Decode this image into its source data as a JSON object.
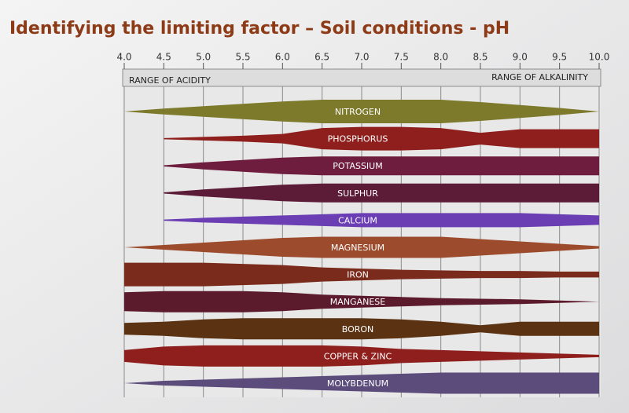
{
  "chart_data": {
    "type": "band",
    "title": "Identifying the limiting factor – Soil conditions - pH",
    "left_label": "RANGE OF ACIDITY",
    "right_label": "RANGE OF ALKALINITY",
    "x": [
      4,
      4.5,
      5,
      5.5,
      6,
      6.5,
      7,
      7.5,
      8,
      8.5,
      9,
      9.5,
      10
    ],
    "xlim": [
      4,
      10
    ],
    "xticks": [
      {
        "value": 4,
        "label": "4.0"
      },
      4.5,
      {
        "value": 5,
        "label": "5.0"
      },
      5.5,
      {
        "value": 6,
        "label": "6.0"
      },
      6.5,
      {
        "value": 7,
        "label": "7.0"
      },
      7.5,
      {
        "value": 8,
        "label": "8.0"
      },
      8.5,
      {
        "value": 9,
        "label": "9.0"
      },
      9.5,
      {
        "value": 10,
        "label": "10.0"
      }
    ],
    "grid": true,
    "series": [
      {
        "name": "NITROGEN",
        "color": "#7d7a2c",
        "values": [
          0,
          0.25,
          0.45,
          0.65,
          0.85,
          1,
          1,
          1,
          1,
          0.8,
          0.55,
          0.3,
          0
        ]
      },
      {
        "name": "PHOSPHORUS",
        "color": "#8e1f1c",
        "values": [
          null,
          0.05,
          0.15,
          0.25,
          0.4,
          0.9,
          1,
          1,
          0.9,
          0.5,
          0.8,
          0.8,
          0.8
        ]
      },
      {
        "name": "POTASSIUM",
        "color": "#6e1d3e",
        "values": [
          null,
          0.05,
          0.3,
          0.5,
          0.7,
          0.8,
          0.8,
          0.8,
          0.8,
          0.8,
          0.8,
          0.8,
          0.8
        ]
      },
      {
        "name": "SULPHUR",
        "color": "#5c1c38",
        "values": [
          null,
          0.05,
          0.3,
          0.5,
          0.7,
          0.8,
          0.8,
          0.8,
          0.8,
          0.8,
          0.8,
          0.8,
          0.8
        ]
      },
      {
        "name": "CALCIUM",
        "color": "#6b3fb3",
        "values": [
          null,
          0.05,
          0.2,
          0.3,
          0.4,
          0.5,
          0.6,
          0.6,
          0.6,
          0.6,
          0.6,
          0.5,
          0.4
        ]
      },
      {
        "name": "MAGNESIUM",
        "color": "#9c4c2c",
        "values": [
          0,
          0.2,
          0.4,
          0.6,
          0.8,
          0.9,
          0.9,
          0.9,
          0.9,
          0.7,
          0.5,
          0.3,
          0.1
        ]
      },
      {
        "name": "IRON",
        "color": "#7a2b1c",
        "values": [
          1,
          1,
          1,
          0.9,
          0.8,
          0.6,
          0.5,
          0.4,
          0.35,
          0.3,
          0.3,
          0.25,
          0.25
        ]
      },
      {
        "name": "MANGANESE",
        "color": "#5c1b2c",
        "values": [
          0.8,
          0.9,
          0.9,
          0.9,
          0.8,
          0.6,
          0.5,
          0.4,
          0.3,
          0.25,
          0.2,
          0.1,
          0
        ]
      },
      {
        "name": "BORON",
        "color": "#5b3212",
        "values": [
          0.5,
          0.6,
          0.8,
          0.9,
          0.9,
          0.9,
          0.9,
          0.8,
          0.6,
          0.3,
          0.6,
          0.6,
          0.6
        ]
      },
      {
        "name": "COPPER & ZINC",
        "color": "#8e1f1c",
        "values": [
          0.5,
          0.8,
          0.9,
          0.9,
          0.9,
          0.9,
          0.8,
          0.6,
          0.5,
          0.4,
          0.3,
          0.2,
          0.1
        ]
      },
      {
        "name": "MOLYBDENUM",
        "color": "#5c4c7c",
        "values": [
          0,
          0.2,
          0.3,
          0.4,
          0.5,
          0.6,
          0.7,
          0.8,
          0.9,
          0.9,
          0.9,
          0.9,
          0.9
        ]
      }
    ]
  }
}
